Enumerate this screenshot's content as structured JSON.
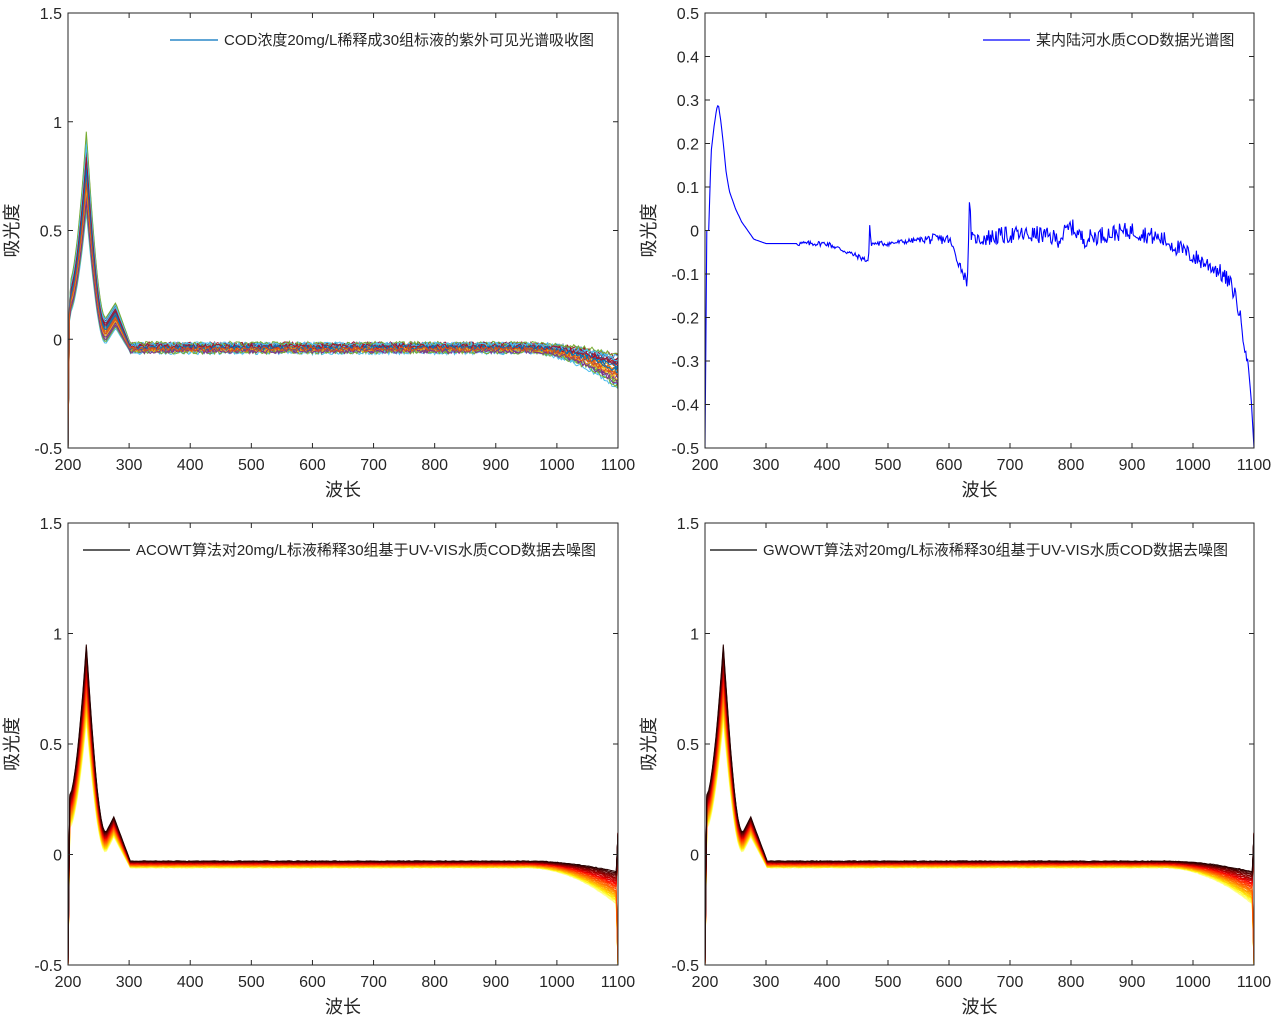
{
  "chart_data": [
    {
      "type": "line",
      "title": "",
      "xlabel": "波长",
      "ylabel": "吸光度",
      "xlim": [
        200,
        1100
      ],
      "ylim": [
        -0.5,
        1.5
      ],
      "xticks": [
        "200",
        "300",
        "400",
        "500",
        "600",
        "700",
        "800",
        "900",
        "1000",
        "1100"
      ],
      "yticks": [
        "-0.5",
        "0",
        "0.5",
        "1",
        "1.5"
      ],
      "grid": false,
      "legend": {
        "position": "top-right",
        "entries": [
          "COD浓度20mg/L稀释成30组标液的紫外可见光谱吸收图"
        ]
      },
      "series_count": 30,
      "colormap": "matlab-default",
      "colors": [
        "#0072BD",
        "#D95319",
        "#EDB120",
        "#7E2F8E",
        "#77AC30",
        "#4DBEEE",
        "#A2142F"
      ],
      "profile": {
        "peak_wavelength": 230,
        "peak_values_range": [
          0.58,
          0.96
        ],
        "secondary_peak_wavelength": 278,
        "secondary_peak_values_range": [
          0.05,
          0.17
        ],
        "baseline_values_range": [
          -0.06,
          -0.02
        ],
        "x": [
          200,
          230,
          278,
          300,
          800,
          1000,
          1100
        ],
        "y_high": [
          0.25,
          0.96,
          0.17,
          -0.02,
          -0.02,
          -0.03,
          -0.1
        ],
        "y_low": [
          0.1,
          0.58,
          0.05,
          -0.06,
          -0.06,
          -0.1,
          -0.25
        ]
      }
    },
    {
      "type": "line",
      "title": "",
      "xlabel": "波长",
      "ylabel": "吸光度",
      "xlim": [
        200,
        1100
      ],
      "ylim": [
        -0.5,
        0.5
      ],
      "xticks": [
        "200",
        "300",
        "400",
        "500",
        "600",
        "700",
        "800",
        "900",
        "1000",
        "1100"
      ],
      "yticks": [
        "-0.5",
        "-0.4",
        "-0.3",
        "-0.2",
        "-0.1",
        "0",
        "0.1",
        "0.2",
        "0.3",
        "0.4",
        "0.5"
      ],
      "grid": false,
      "legend": {
        "position": "top-right",
        "entries": [
          "某内陆河水质COD数据光谱图"
        ]
      },
      "series": [
        {
          "color": "#0000FF",
          "x": [
            200,
            203,
            206,
            210,
            215,
            219,
            222,
            226,
            230,
            235,
            240,
            245,
            250,
            260,
            270,
            280,
            300,
            350,
            400,
            468,
            470,
            472,
            500,
            560,
            600,
            630,
            634,
            636,
            640,
            700,
            750,
            780,
            800,
            820,
            850,
            900,
            950,
            1000,
            1040,
            1060,
            1070,
            1080,
            1090,
            1095,
            1100
          ],
          "y": [
            -0.5,
            0.0,
            0.0,
            0.18,
            0.24,
            0.28,
            0.29,
            0.25,
            0.2,
            0.13,
            0.09,
            0.07,
            0.05,
            0.02,
            0.0,
            -0.02,
            -0.03,
            -0.03,
            -0.03,
            -0.07,
            0.01,
            -0.03,
            -0.03,
            -0.02,
            -0.02,
            -0.12,
            0.08,
            -0.01,
            -0.02,
            -0.01,
            -0.01,
            -0.02,
            0.01,
            -0.02,
            -0.01,
            0.0,
            -0.02,
            -0.06,
            -0.09,
            -0.12,
            -0.15,
            -0.22,
            -0.3,
            -0.38,
            -0.5
          ]
        }
      ]
    },
    {
      "type": "line",
      "title": "",
      "xlabel": "波长",
      "ylabel": "吸光度",
      "xlim": [
        200,
        1100
      ],
      "ylim": [
        -0.5,
        1.5
      ],
      "xticks": [
        "200",
        "300",
        "400",
        "500",
        "600",
        "700",
        "800",
        "900",
        "1000",
        "1100"
      ],
      "yticks": [
        "-0.5",
        "0",
        "0.5",
        "1",
        "1.5"
      ],
      "grid": false,
      "legend": {
        "position": "top-right",
        "entries": [
          "ACOWT算法对20mg/L标液稀释30组基于UV-VIS水质COD数据去噪图"
        ]
      },
      "series_count": 30,
      "colormap": "hot",
      "profile": {
        "peak_wavelength": 230,
        "peak_values_range": [
          0.6,
          0.95
        ],
        "secondary_peak_wavelength": 275,
        "secondary_peak_values_range": [
          0.08,
          0.17
        ],
        "baseline_values_range": [
          -0.06,
          -0.03
        ],
        "x": [
          200,
          230,
          275,
          300,
          900,
          1000,
          1080,
          1100
        ],
        "y_high": [
          0.3,
          0.95,
          0.17,
          -0.03,
          -0.03,
          -0.04,
          -0.08,
          0.1
        ],
        "y_low": [
          0.05,
          0.6,
          0.08,
          -0.06,
          -0.05,
          -0.1,
          -0.2,
          -0.5
        ]
      }
    },
    {
      "type": "line",
      "title": "",
      "xlabel": "波长",
      "ylabel": "吸光度",
      "xlim": [
        200,
        1100
      ],
      "ylim": [
        -0.5,
        1.5
      ],
      "xticks": [
        "200",
        "300",
        "400",
        "500",
        "600",
        "700",
        "800",
        "900",
        "1000",
        "1100"
      ],
      "yticks": [
        "-0.5",
        "0",
        "0.5",
        "1",
        "1.5"
      ],
      "grid": false,
      "legend": {
        "position": "top-right",
        "entries": [
          "GWOWT算法对20mg/L标液稀释30组基于UV-VIS水质COD数据去噪图"
        ]
      },
      "series_count": 30,
      "colormap": "hot",
      "profile": {
        "peak_wavelength": 230,
        "peak_values_range": [
          0.6,
          0.95
        ],
        "secondary_peak_wavelength": 275,
        "secondary_peak_values_range": [
          0.08,
          0.17
        ],
        "baseline_values_range": [
          -0.06,
          -0.03
        ],
        "x": [
          200,
          230,
          275,
          300,
          900,
          1000,
          1080,
          1100
        ],
        "y_high": [
          0.3,
          0.95,
          0.17,
          -0.03,
          -0.03,
          -0.04,
          -0.08,
          0.1
        ],
        "y_low": [
          0.05,
          0.6,
          0.08,
          -0.06,
          -0.05,
          -0.1,
          -0.2,
          -0.5
        ]
      }
    }
  ]
}
